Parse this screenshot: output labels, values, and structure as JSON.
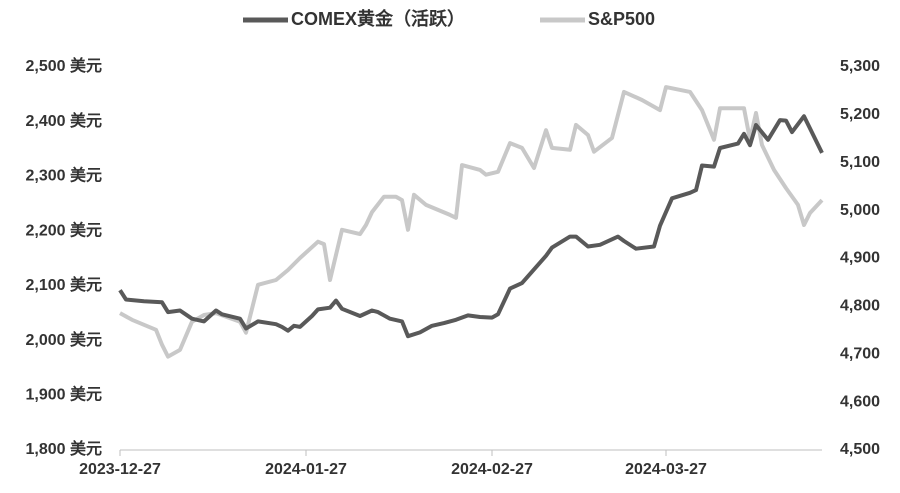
{
  "chart_data": {
    "type": "line",
    "series": [
      {
        "name": "COMEX黄金（活跃）",
        "color": "#595959",
        "axis": "y",
        "x": [
          "2023-12-27",
          "2023-12-28",
          "2023-12-31",
          "2024-01-03",
          "2024-01-04",
          "2024-01-06",
          "2024-01-08",
          "2024-01-10",
          "2024-01-12",
          "2024-01-13",
          "2024-01-16",
          "2024-01-17",
          "2024-01-19",
          "2024-01-22",
          "2024-01-23",
          "2024-01-24",
          "2024-01-25",
          "2024-01-26",
          "2024-01-28",
          "2024-01-29",
          "2024-01-31",
          "2024-02-01",
          "2024-02-02",
          "2024-02-05",
          "2024-02-07",
          "2024-02-08",
          "2024-02-10",
          "2024-02-12",
          "2024-02-13",
          "2024-02-15",
          "2024-02-17",
          "2024-02-19",
          "2024-02-21",
          "2024-02-23",
          "2024-02-25",
          "2024-02-27",
          "2024-02-28",
          "2024-03-01",
          "2024-03-03",
          "2024-03-05",
          "2024-03-07",
          "2024-03-08",
          "2024-03-11",
          "2024-03-12",
          "2024-03-14",
          "2024-03-16",
          "2024-03-19",
          "2024-03-20",
          "2024-03-22",
          "2024-03-25",
          "2024-03-26",
          "2024-03-28",
          "2024-03-31",
          "2024-04-01",
          "2024-04-02",
          "2024-04-04",
          "2024-04-05",
          "2024-04-08",
          "2024-04-09",
          "2024-04-10",
          "2024-04-11",
          "2024-04-13",
          "2024-04-15",
          "2024-04-16",
          "2024-04-17",
          "2024-04-19",
          "2024-04-22"
        ],
        "values": [
          2092,
          2075,
          2072,
          2070,
          2052,
          2055,
          2040,
          2035,
          2055,
          2048,
          2040,
          2022,
          2035,
          2030,
          2025,
          2018,
          2027,
          2025,
          2045,
          2057,
          2060,
          2073,
          2058,
          2045,
          2055,
          2052,
          2040,
          2035,
          2008,
          2015,
          2027,
          2032,
          2038,
          2046,
          2043,
          2042,
          2048,
          2095,
          2105,
          2130,
          2155,
          2170,
          2190,
          2190,
          2172,
          2175,
          2190,
          2182,
          2168,
          2172,
          2210,
          2260,
          2270,
          2275,
          2320,
          2318,
          2352,
          2360,
          2378,
          2357,
          2394,
          2367,
          2403,
          2402,
          2381,
          2410,
          2343
        ]
      },
      {
        "name": "S&P500",
        "color": "#c8c8c8",
        "axis": "y2",
        "x": [
          "2023-12-27",
          "2023-12-29",
          "2024-01-02",
          "2024-01-03",
          "2024-01-04",
          "2024-01-06",
          "2024-01-08",
          "2024-01-10",
          "2024-01-12",
          "2024-01-16",
          "2024-01-17",
          "2024-01-19",
          "2024-01-22",
          "2024-01-24",
          "2024-01-26",
          "2024-01-29",
          "2024-01-30",
          "2024-01-31",
          "2024-02-02",
          "2024-02-05",
          "2024-02-06",
          "2024-02-07",
          "2024-02-09",
          "2024-02-11",
          "2024-02-12",
          "2024-02-13",
          "2024-02-14",
          "2024-02-16",
          "2024-02-20",
          "2024-02-21",
          "2024-02-22",
          "2024-02-25",
          "2024-02-26",
          "2024-02-28",
          "2024-03-01",
          "2024-03-03",
          "2024-03-05",
          "2024-03-07",
          "2024-03-08",
          "2024-03-11",
          "2024-03-12",
          "2024-03-14",
          "2024-03-15",
          "2024-03-18",
          "2024-03-19",
          "2024-03-20",
          "2024-03-23",
          "2024-03-26",
          "2024-03-27",
          "2024-03-31",
          "2024-04-02",
          "2024-04-04",
          "2024-04-05",
          "2024-04-09",
          "2024-04-10",
          "2024-04-11",
          "2024-04-12",
          "2024-04-14",
          "2024-04-16",
          "2024-04-18",
          "2024-04-19",
          "2024-04-20",
          "2024-04-22"
        ],
        "values": [
          4786,
          4772,
          4751,
          4720,
          4695,
          4709,
          4768,
          4782,
          4786,
          4768,
          4745,
          4845,
          4855,
          4876,
          4901,
          4935,
          4930,
          4855,
          4960,
          4951,
          4970,
          4997,
          5029,
          5029,
          5022,
          4960,
          5033,
          5012,
          4991,
          4985,
          5095,
          5085,
          5075,
          5081,
          5141,
          5131,
          5089,
          5168,
          5131,
          5127,
          5179,
          5158,
          5123,
          5152,
          5200,
          5248,
          5231,
          5210,
          5258,
          5248,
          5210,
          5148,
          5214,
          5214,
          5148,
          5204,
          5137,
          5085,
          5047,
          5012,
          4970,
          4995,
          5022
        ]
      }
    ],
    "xlim": [
      "2023-12-27",
      "2024-04-22"
    ],
    "xticks": [
      "2023-12-27",
      "2024-01-27",
      "2024-02-27",
      "2024-03-27"
    ],
    "ylim": [
      1800,
      2500
    ],
    "yticks": [
      {
        "value": 1800,
        "label": "1,800 美元"
      },
      {
        "value": 1900,
        "label": "1,900 美元"
      },
      {
        "value": 2000,
        "label": "2,000 美元"
      },
      {
        "value": 2100,
        "label": "2,100 美元"
      },
      {
        "value": 2200,
        "label": "2,200 美元"
      },
      {
        "value": 2300,
        "label": "2,300 美元"
      },
      {
        "value": 2400,
        "label": "2,400 美元"
      },
      {
        "value": 2500,
        "label": "2,500 美元"
      }
    ],
    "y2lim": [
      4500,
      5300
    ],
    "y2ticks": [
      {
        "value": 4500,
        "label": "4,500"
      },
      {
        "value": 4600,
        "label": "4,600"
      },
      {
        "value": 4700,
        "label": "4,700"
      },
      {
        "value": 4800,
        "label": "4,800"
      },
      {
        "value": 4900,
        "label": "4,900"
      },
      {
        "value": 5000,
        "label": "5,000"
      },
      {
        "value": 5100,
        "label": "5,100"
      },
      {
        "value": 5200,
        "label": "5,200"
      },
      {
        "value": 5300,
        "label": "5,300"
      }
    ],
    "grid": false,
    "legend": "top"
  }
}
